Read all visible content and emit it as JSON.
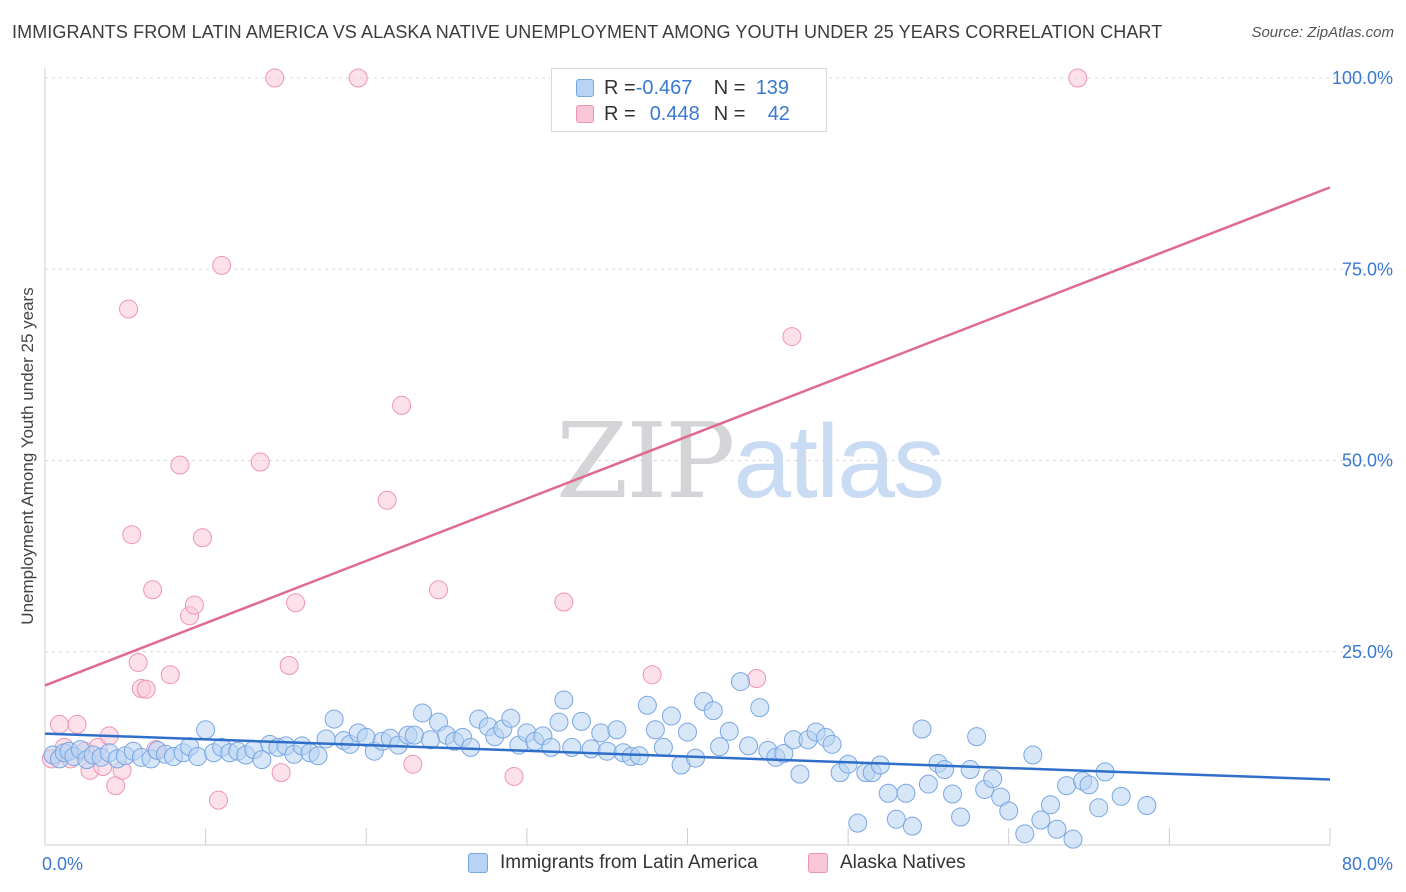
{
  "title": "IMMIGRANTS FROM LATIN AMERICA VS ALASKA NATIVE UNEMPLOYMENT AMONG YOUTH UNDER 25 YEARS CORRELATION CHART",
  "source": "Source: ZipAtlas.com",
  "watermark": {
    "zip": "ZIP",
    "atlas": "atlas"
  },
  "legend_top": {
    "blue": {
      "r_label": "R = ",
      "r_value": "-0.467",
      "n_label": "N = ",
      "n_value": "139"
    },
    "pink": {
      "r_label": "R = ",
      "r_value": "0.448",
      "n_label": "N = ",
      "n_value": "42"
    }
  },
  "legend_bottom": {
    "blue": "Immigrants from Latin America",
    "pink": "Alaska Natives"
  },
  "colors": {
    "blue_fill": "#b8d3f3",
    "blue_stroke": "#7aa7e3",
    "blue_line": "#2f6fc9",
    "pink_fill": "#f9c8d8",
    "pink_stroke": "#ef95b3",
    "pink_line": "#e06a92",
    "tick_label": "#3b78d0",
    "grid": "#d8d8d8"
  },
  "chart_data": {
    "type": "scatter",
    "title": "IMMIGRANTS FROM LATIN AMERICA VS ALASKA NATIVE UNEMPLOYMENT AMONG YOUTH UNDER 25 YEARS CORRELATION CHART",
    "xlabel": "",
    "ylabel": "Unemployment Among Youth under 25 years",
    "xlim": [
      0,
      80
    ],
    "ylim": [
      0,
      100
    ],
    "x_tick_labels": [
      {
        "value": 0,
        "label": "0.0%"
      },
      {
        "value": 80,
        "label": "80.0%"
      }
    ],
    "y_tick_labels": [
      {
        "value": 25,
        "label": "25.0%"
      },
      {
        "value": 50,
        "label": "50.0%"
      },
      {
        "value": 75,
        "label": "75.0%"
      },
      {
        "value": 100,
        "label": "100.0%"
      }
    ],
    "series": [
      {
        "name": "Immigrants from Latin America",
        "color": "blue",
        "r": -0.467,
        "n": 139,
        "trendline": {
          "x": [
            0,
            80
          ],
          "y": [
            14.3,
            8.3
          ]
        },
        "points": [
          [
            0.5,
            11.5
          ],
          [
            0.9,
            11
          ],
          [
            1.2,
            11.8
          ],
          [
            1.5,
            12
          ],
          [
            1.8,
            11.3
          ],
          [
            2.2,
            12.2
          ],
          [
            2.6,
            10.9
          ],
          [
            3.0,
            11.5
          ],
          [
            3.5,
            11.2
          ],
          [
            4,
            11.8
          ],
          [
            4.5,
            11
          ],
          [
            5,
            11.4
          ],
          [
            5.5,
            12
          ],
          [
            6,
            11.2
          ],
          [
            6.6,
            11
          ],
          [
            7,
            12.1
          ],
          [
            7.5,
            11.6
          ],
          [
            8,
            11.3
          ],
          [
            8.6,
            11.8
          ],
          [
            9,
            12.6
          ],
          [
            9.5,
            11.3
          ],
          [
            10,
            14.8
          ],
          [
            10.5,
            11.8
          ],
          [
            11,
            12.5
          ],
          [
            11.5,
            11.8
          ],
          [
            12,
            12
          ],
          [
            12.5,
            11.5
          ],
          [
            13,
            12.2
          ],
          [
            13.5,
            10.9
          ],
          [
            14,
            12.9
          ],
          [
            14.5,
            12.5
          ],
          [
            15,
            12.7
          ],
          [
            15.5,
            11.6
          ],
          [
            16,
            12.7
          ],
          [
            16.5,
            11.8
          ],
          [
            17,
            11.4
          ],
          [
            17.5,
            13.6
          ],
          [
            18,
            16.2
          ],
          [
            18.6,
            13.4
          ],
          [
            19,
            12.9
          ],
          [
            19.5,
            14.4
          ],
          [
            20,
            13.8
          ],
          [
            20.5,
            12
          ],
          [
            21,
            13.3
          ],
          [
            21.5,
            13.7
          ],
          [
            22,
            12.8
          ],
          [
            22.6,
            14.1
          ],
          [
            23,
            14.1
          ],
          [
            23.5,
            17
          ],
          [
            24,
            13.5
          ],
          [
            24.5,
            15.8
          ],
          [
            25,
            14.1
          ],
          [
            25.5,
            13.3
          ],
          [
            26,
            13.8
          ],
          [
            26.5,
            12.5
          ],
          [
            27,
            16.2
          ],
          [
            27.6,
            15.2
          ],
          [
            28,
            13.9
          ],
          [
            28.5,
            14.9
          ],
          [
            29,
            16.3
          ],
          [
            29.5,
            12.8
          ],
          [
            30,
            14.4
          ],
          [
            30.5,
            13.3
          ],
          [
            31,
            14
          ],
          [
            31.5,
            12.5
          ],
          [
            32,
            15.8
          ],
          [
            32.3,
            18.7
          ],
          [
            32.8,
            12.5
          ],
          [
            33.4,
            15.9
          ],
          [
            34,
            12.3
          ],
          [
            34.6,
            14.4
          ],
          [
            35,
            12
          ],
          [
            35.6,
            14.8
          ],
          [
            36,
            11.8
          ],
          [
            36.5,
            11.3
          ],
          [
            37,
            11.4
          ],
          [
            37.5,
            18
          ],
          [
            38,
            14.8
          ],
          [
            38.5,
            12.5
          ],
          [
            39,
            16.6
          ],
          [
            39.6,
            10.2
          ],
          [
            40,
            14.5
          ],
          [
            40.5,
            11.1
          ],
          [
            41,
            18.5
          ],
          [
            41.6,
            17.3
          ],
          [
            42,
            12.6
          ],
          [
            42.6,
            14.6
          ],
          [
            43.3,
            21.1
          ],
          [
            43.8,
            12.7
          ],
          [
            44.5,
            17.7
          ],
          [
            45,
            12.1
          ],
          [
            45.5,
            11.2
          ],
          [
            46,
            11.7
          ],
          [
            46.6,
            13.5
          ],
          [
            47,
            9
          ],
          [
            47.5,
            13.5
          ],
          [
            48,
            14.5
          ],
          [
            48.6,
            13.8
          ],
          [
            49,
            12.9
          ],
          [
            49.5,
            9.2
          ],
          [
            50,
            10.3
          ],
          [
            50.6,
            2.6
          ],
          [
            51.1,
            9.2
          ],
          [
            51.5,
            9.2
          ],
          [
            52,
            10.2
          ],
          [
            52.5,
            6.5
          ],
          [
            53,
            3.1
          ],
          [
            53.6,
            6.5
          ],
          [
            54,
            2.2
          ],
          [
            54.6,
            14.9
          ],
          [
            55,
            7.7
          ],
          [
            55.6,
            10.4
          ],
          [
            56,
            9.6
          ],
          [
            56.5,
            6.4
          ],
          [
            57,
            3.4
          ],
          [
            57.6,
            9.6
          ],
          [
            58,
            13.9
          ],
          [
            58.5,
            7
          ],
          [
            59,
            8.4
          ],
          [
            59.5,
            6
          ],
          [
            60,
            4.2
          ],
          [
            61,
            1.2
          ],
          [
            61.5,
            11.5
          ],
          [
            62,
            3
          ],
          [
            62.6,
            5
          ],
          [
            63,
            1.8
          ],
          [
            63.6,
            7.5
          ],
          [
            64,
            0.5
          ],
          [
            64.6,
            8.1
          ],
          [
            65,
            7.6
          ],
          [
            65.6,
            4.6
          ],
          [
            66,
            9.3
          ],
          [
            67,
            6.1
          ],
          [
            68.6,
            4.9
          ]
        ]
      },
      {
        "name": "Alaska Natives",
        "color": "pink",
        "r": 0.448,
        "n": 42,
        "trendline": {
          "x": [
            0,
            80
          ],
          "y": [
            20.6,
            85.7
          ]
        },
        "points": [
          [
            0.4,
            11
          ],
          [
            0.9,
            15.5
          ],
          [
            1.2,
            12.5
          ],
          [
            1.6,
            11
          ],
          [
            2,
            15.5
          ],
          [
            2.5,
            12
          ],
          [
            2.8,
            9.5
          ],
          [
            3.3,
            12.5
          ],
          [
            3.6,
            10
          ],
          [
            4,
            14
          ],
          [
            4.4,
            7.5
          ],
          [
            4.8,
            9.5
          ],
          [
            5.2,
            69.8
          ],
          [
            5.4,
            40.3
          ],
          [
            5.8,
            23.6
          ],
          [
            6,
            20.2
          ],
          [
            6.7,
            33.1
          ],
          [
            6.3,
            20.1
          ],
          [
            7.8,
            22
          ],
          [
            8.4,
            49.4
          ],
          [
            9,
            29.7
          ],
          [
            9.3,
            31.1
          ],
          [
            9.8,
            39.9
          ],
          [
            10.8,
            5.6
          ],
          [
            11,
            75.5
          ],
          [
            13.4,
            49.8
          ],
          [
            14.3,
            100
          ],
          [
            14.7,
            9.2
          ],
          [
            15.2,
            23.2
          ],
          [
            15.6,
            31.4
          ],
          [
            19.5,
            100
          ],
          [
            21.3,
            44.8
          ],
          [
            22.2,
            57.2
          ],
          [
            22.9,
            10.3
          ],
          [
            24.5,
            33.1
          ],
          [
            29.2,
            8.7
          ],
          [
            32.3,
            31.5
          ],
          [
            37.8,
            22
          ],
          [
            44.3,
            21.5
          ],
          [
            46.5,
            66.2
          ],
          [
            64.3,
            100
          ],
          [
            6.9,
            12.2
          ]
        ]
      }
    ]
  }
}
